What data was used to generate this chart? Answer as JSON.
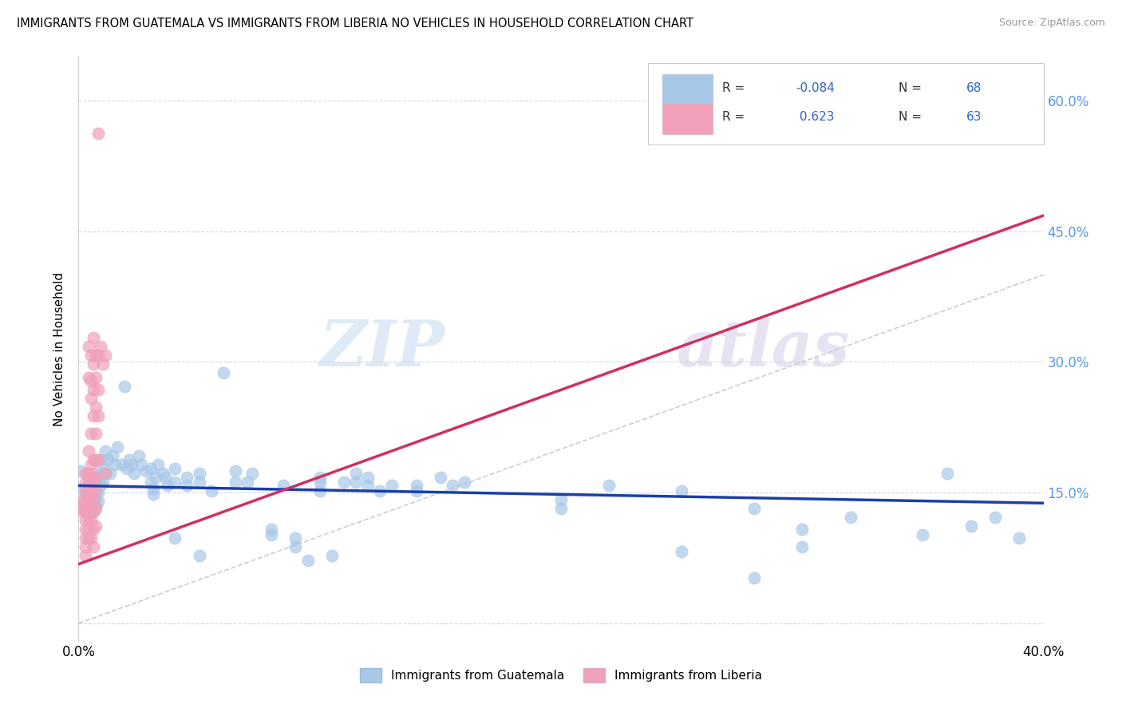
{
  "title": "IMMIGRANTS FROM GUATEMALA VS IMMIGRANTS FROM LIBERIA NO VEHICLES IN HOUSEHOLD CORRELATION CHART",
  "source": "Source: ZipAtlas.com",
  "ylabel": "No Vehicles in Household",
  "xlim": [
    0.0,
    0.4
  ],
  "ylim": [
    -0.02,
    0.65
  ],
  "yticks": [
    0.0,
    0.15,
    0.3,
    0.45,
    0.6
  ],
  "ytick_labels": [
    "",
    "15.0%",
    "30.0%",
    "45.0%",
    "60.0%"
  ],
  "xticks": [
    0.0,
    0.1,
    0.2,
    0.3,
    0.4
  ],
  "xtick_labels": [
    "0.0%",
    "",
    "",
    "",
    "40.0%"
  ],
  "color_guatemala": "#a8c8e8",
  "color_liberia": "#f0a0b8",
  "color_blue_line": "#1a3faa",
  "color_pink_line": "#d03060",
  "color_diagonal": "#c0c0cc",
  "watermark_zip": "ZIP",
  "watermark_atlas": "atlas",
  "scatter_guatemala": [
    [
      0.001,
      0.175
    ],
    [
      0.002,
      0.155
    ],
    [
      0.003,
      0.148
    ],
    [
      0.003,
      0.138
    ],
    [
      0.004,
      0.16
    ],
    [
      0.004,
      0.148
    ],
    [
      0.005,
      0.162
    ],
    [
      0.005,
      0.148
    ],
    [
      0.005,
      0.138
    ],
    [
      0.005,
      0.128
    ],
    [
      0.006,
      0.172
    ],
    [
      0.006,
      0.158
    ],
    [
      0.006,
      0.148
    ],
    [
      0.006,
      0.138
    ],
    [
      0.006,
      0.128
    ],
    [
      0.007,
      0.168
    ],
    [
      0.007,
      0.155
    ],
    [
      0.007,
      0.145
    ],
    [
      0.007,
      0.135
    ],
    [
      0.008,
      0.162
    ],
    [
      0.008,
      0.15
    ],
    [
      0.008,
      0.14
    ],
    [
      0.009,
      0.188
    ],
    [
      0.009,
      0.172
    ],
    [
      0.009,
      0.158
    ],
    [
      0.01,
      0.18
    ],
    [
      0.01,
      0.162
    ],
    [
      0.011,
      0.198
    ],
    [
      0.011,
      0.172
    ],
    [
      0.012,
      0.188
    ],
    [
      0.013,
      0.172
    ],
    [
      0.014,
      0.192
    ],
    [
      0.015,
      0.182
    ],
    [
      0.016,
      0.202
    ],
    [
      0.018,
      0.182
    ],
    [
      0.019,
      0.272
    ],
    [
      0.02,
      0.178
    ],
    [
      0.021,
      0.188
    ],
    [
      0.022,
      0.182
    ],
    [
      0.023,
      0.172
    ],
    [
      0.025,
      0.192
    ],
    [
      0.026,
      0.182
    ],
    [
      0.028,
      0.175
    ],
    [
      0.03,
      0.178
    ],
    [
      0.03,
      0.162
    ],
    [
      0.031,
      0.155
    ],
    [
      0.031,
      0.148
    ],
    [
      0.032,
      0.168
    ],
    [
      0.033,
      0.182
    ],
    [
      0.035,
      0.172
    ],
    [
      0.036,
      0.168
    ],
    [
      0.037,
      0.158
    ],
    [
      0.04,
      0.178
    ],
    [
      0.04,
      0.162
    ],
    [
      0.04,
      0.098
    ],
    [
      0.045,
      0.158
    ],
    [
      0.045,
      0.168
    ],
    [
      0.05,
      0.172
    ],
    [
      0.05,
      0.162
    ],
    [
      0.05,
      0.078
    ],
    [
      0.055,
      0.152
    ],
    [
      0.06,
      0.288
    ],
    [
      0.065,
      0.175
    ],
    [
      0.065,
      0.162
    ],
    [
      0.07,
      0.162
    ],
    [
      0.072,
      0.172
    ],
    [
      0.08,
      0.108
    ],
    [
      0.08,
      0.102
    ],
    [
      0.085,
      0.158
    ],
    [
      0.09,
      0.098
    ],
    [
      0.09,
      0.088
    ],
    [
      0.095,
      0.072
    ],
    [
      0.1,
      0.168
    ],
    [
      0.1,
      0.162
    ],
    [
      0.1,
      0.152
    ],
    [
      0.105,
      0.078
    ],
    [
      0.11,
      0.162
    ],
    [
      0.115,
      0.172
    ],
    [
      0.115,
      0.162
    ],
    [
      0.12,
      0.158
    ],
    [
      0.12,
      0.168
    ],
    [
      0.125,
      0.152
    ],
    [
      0.13,
      0.158
    ],
    [
      0.14,
      0.158
    ],
    [
      0.14,
      0.152
    ],
    [
      0.15,
      0.168
    ],
    [
      0.155,
      0.158
    ],
    [
      0.16,
      0.162
    ],
    [
      0.2,
      0.142
    ],
    [
      0.2,
      0.132
    ],
    [
      0.22,
      0.158
    ],
    [
      0.25,
      0.152
    ],
    [
      0.25,
      0.082
    ],
    [
      0.28,
      0.132
    ],
    [
      0.28,
      0.052
    ],
    [
      0.3,
      0.108
    ],
    [
      0.3,
      0.088
    ],
    [
      0.32,
      0.122
    ],
    [
      0.35,
      0.102
    ],
    [
      0.36,
      0.172
    ],
    [
      0.37,
      0.112
    ],
    [
      0.38,
      0.122
    ],
    [
      0.39,
      0.098
    ]
  ],
  "scatter_liberia": [
    [
      0.002,
      0.142
    ],
    [
      0.002,
      0.138
    ],
    [
      0.002,
      0.132
    ],
    [
      0.002,
      0.128
    ],
    [
      0.003,
      0.172
    ],
    [
      0.003,
      0.162
    ],
    [
      0.003,
      0.152
    ],
    [
      0.003,
      0.138
    ],
    [
      0.003,
      0.128
    ],
    [
      0.003,
      0.118
    ],
    [
      0.003,
      0.108
    ],
    [
      0.003,
      0.098
    ],
    [
      0.003,
      0.088
    ],
    [
      0.003,
      0.078
    ],
    [
      0.004,
      0.318
    ],
    [
      0.004,
      0.282
    ],
    [
      0.004,
      0.198
    ],
    [
      0.004,
      0.172
    ],
    [
      0.004,
      0.168
    ],
    [
      0.004,
      0.158
    ],
    [
      0.004,
      0.152
    ],
    [
      0.004,
      0.142
    ],
    [
      0.004,
      0.132
    ],
    [
      0.004,
      0.118
    ],
    [
      0.004,
      0.108
    ],
    [
      0.004,
      0.098
    ],
    [
      0.005,
      0.308
    ],
    [
      0.005,
      0.278
    ],
    [
      0.005,
      0.258
    ],
    [
      0.005,
      0.218
    ],
    [
      0.005,
      0.182
    ],
    [
      0.005,
      0.168
    ],
    [
      0.005,
      0.158
    ],
    [
      0.005,
      0.148
    ],
    [
      0.005,
      0.118
    ],
    [
      0.005,
      0.098
    ],
    [
      0.006,
      0.328
    ],
    [
      0.006,
      0.298
    ],
    [
      0.006,
      0.268
    ],
    [
      0.006,
      0.238
    ],
    [
      0.006,
      0.188
    ],
    [
      0.006,
      0.162
    ],
    [
      0.006,
      0.142
    ],
    [
      0.006,
      0.128
    ],
    [
      0.006,
      0.108
    ],
    [
      0.006,
      0.088
    ],
    [
      0.007,
      0.308
    ],
    [
      0.007,
      0.282
    ],
    [
      0.007,
      0.248
    ],
    [
      0.007,
      0.218
    ],
    [
      0.007,
      0.188
    ],
    [
      0.007,
      0.168
    ],
    [
      0.007,
      0.152
    ],
    [
      0.007,
      0.132
    ],
    [
      0.007,
      0.112
    ],
    [
      0.008,
      0.562
    ],
    [
      0.008,
      0.308
    ],
    [
      0.008,
      0.268
    ],
    [
      0.008,
      0.238
    ],
    [
      0.008,
      0.188
    ],
    [
      0.009,
      0.318
    ],
    [
      0.01,
      0.298
    ],
    [
      0.011,
      0.308
    ],
    [
      0.011,
      0.172
    ]
  ],
  "line_guatemala": [
    [
      0.0,
      0.158
    ],
    [
      0.4,
      0.138
    ]
  ],
  "line_liberia": [
    [
      0.0,
      0.068
    ],
    [
      0.012,
      0.152
    ]
  ],
  "diagonal_line": [
    [
      0.0,
      0.0
    ],
    [
      0.62,
      0.62
    ]
  ]
}
